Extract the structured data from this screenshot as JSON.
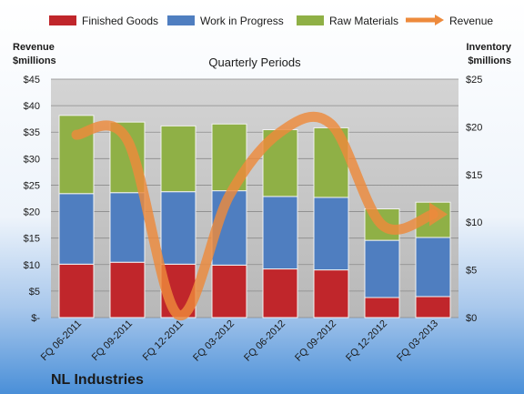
{
  "chart_data": {
    "type": "bar",
    "title": "Quarterly Periods",
    "company": "NL Industries",
    "left_axis_title": [
      "Revenue",
      "$millions"
    ],
    "right_axis_title": [
      "Inventory",
      "$millions"
    ],
    "categories": [
      "FQ 06-2011",
      "FQ 09-2011",
      "FQ 12-2011",
      "FQ 03-2012",
      "FQ 06-2012",
      "FQ 09-2012",
      "FQ 12-2012",
      "FQ 03-2013"
    ],
    "inventory_series": [
      {
        "name": "Finished Goods",
        "color": "#c0262b",
        "values": [
          5.6,
          5.8,
          5.6,
          5.5,
          5.1,
          5.0,
          2.1,
          2.2
        ]
      },
      {
        "name": "Work in Progress",
        "color": "#4f7ec0",
        "values": [
          7.4,
          7.3,
          7.6,
          7.8,
          7.6,
          7.6,
          6.0,
          6.2
        ]
      },
      {
        "name": "Raw Materials",
        "color": "#8fb046",
        "values": [
          8.2,
          7.4,
          6.9,
          7.0,
          7.0,
          7.3,
          3.3,
          3.7
        ]
      }
    ],
    "revenue_series": {
      "name": "Revenue",
      "color": "#ed8a3c",
      "values": [
        34.5,
        33.5,
        0.5,
        23.0,
        35.0,
        36.5,
        17.5,
        19.5
      ]
    },
    "left_axis": {
      "min": 0,
      "max": 45,
      "step": 5,
      "tick_labels": [
        "$-",
        "$5",
        "$10",
        "$15",
        "$20",
        "$25",
        "$30",
        "$35",
        "$40",
        "$45"
      ]
    },
    "right_axis": {
      "min": 0,
      "max": 25,
      "step": 5,
      "tick_labels": [
        "$0",
        "$5",
        "$10",
        "$15",
        "$20",
        "$25"
      ]
    },
    "legend_position": "top",
    "grid": true
  }
}
